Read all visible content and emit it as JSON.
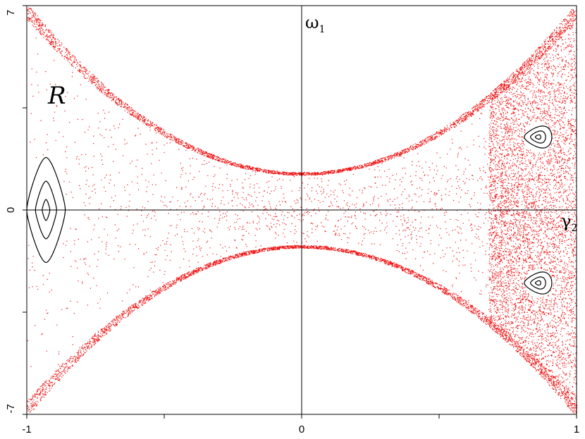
{
  "chart_data": {
    "type": "scatter",
    "title": "",
    "xlabel": "γ2",
    "xlabel_sub": "2",
    "xlabel_base": "γ",
    "ylabel": "ω1",
    "ylabel_sub": "1",
    "ylabel_base": "ω",
    "xlim": [
      -1,
      1
    ],
    "ylim": [
      -7,
      7
    ],
    "x_ticks": [
      "-1",
      "0",
      "1"
    ],
    "y_ticks": [
      "7",
      "0",
      "-7"
    ],
    "region_label": "R",
    "grid": false,
    "legend": "none",
    "point_color": "#ee1111",
    "curve_color": "#000000",
    "series": [
      {
        "values": "dense chaotic point cloud between the envelope curves ω1 ≈ ±(1.3 + 5.8·γ2²) over γ2 ∈ [-1, 1]; densest for γ2 > 0.65"
      }
    ],
    "islands": [
      {
        "name": "left island",
        "x": -0.93,
        "y": 0,
        "half_width": 0.07,
        "half_height": 1.8
      },
      {
        "name": "upper right island",
        "x": 0.86,
        "y": 2.5,
        "half_width": 0.05,
        "half_height": 0.5
      },
      {
        "name": "lower right island",
        "x": 0.86,
        "y": -2.5,
        "half_width": 0.05,
        "half_height": 0.5
      }
    ]
  }
}
